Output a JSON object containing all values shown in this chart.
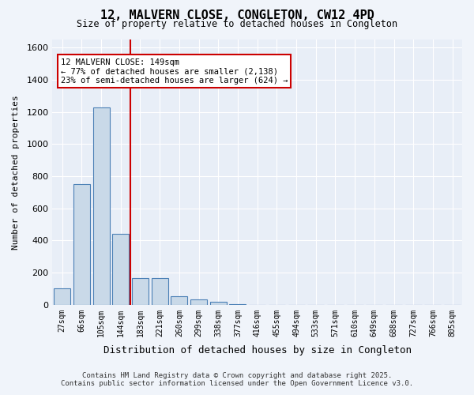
{
  "title_line1": "12, MALVERN CLOSE, CONGLETON, CW12 4PD",
  "title_line2": "Size of property relative to detached houses in Congleton",
  "xlabel": "Distribution of detached houses by size in Congleton",
  "ylabel": "Number of detached properties",
  "categories": [
    "27sqm",
    "66sqm",
    "105sqm",
    "144sqm",
    "183sqm",
    "221sqm",
    "260sqm",
    "299sqm",
    "338sqm",
    "377sqm",
    "416sqm",
    "455sqm",
    "494sqm",
    "533sqm",
    "571sqm",
    "610sqm",
    "649sqm",
    "688sqm",
    "727sqm",
    "766sqm",
    "805sqm"
  ],
  "values": [
    100,
    750,
    1225,
    440,
    165,
    165,
    55,
    35,
    20,
    5,
    0,
    0,
    0,
    0,
    0,
    0,
    0,
    0,
    0,
    0,
    0
  ],
  "bar_color": "#c9d9e8",
  "bar_edge_color": "#4a7fb5",
  "vline_x": 3.5,
  "vline_color": "#cc0000",
  "vline_label": "149sqm",
  "annotation_title": "12 MALVERN CLOSE: 149sqm",
  "annotation_line2": "← 77% of detached houses are smaller (2,138)",
  "annotation_line3": "23% of semi-detached houses are larger (624) →",
  "annotation_box_color": "#cc0000",
  "ylim": [
    0,
    1650
  ],
  "yticks": [
    0,
    200,
    400,
    600,
    800,
    1000,
    1200,
    1400,
    1600
  ],
  "footer_line1": "Contains HM Land Registry data © Crown copyright and database right 2025.",
  "footer_line2": "Contains public sector information licensed under the Open Government Licence v3.0.",
  "bg_color": "#f0f4fa",
  "plot_bg_color": "#e8eef7",
  "grid_color": "#ffffff"
}
